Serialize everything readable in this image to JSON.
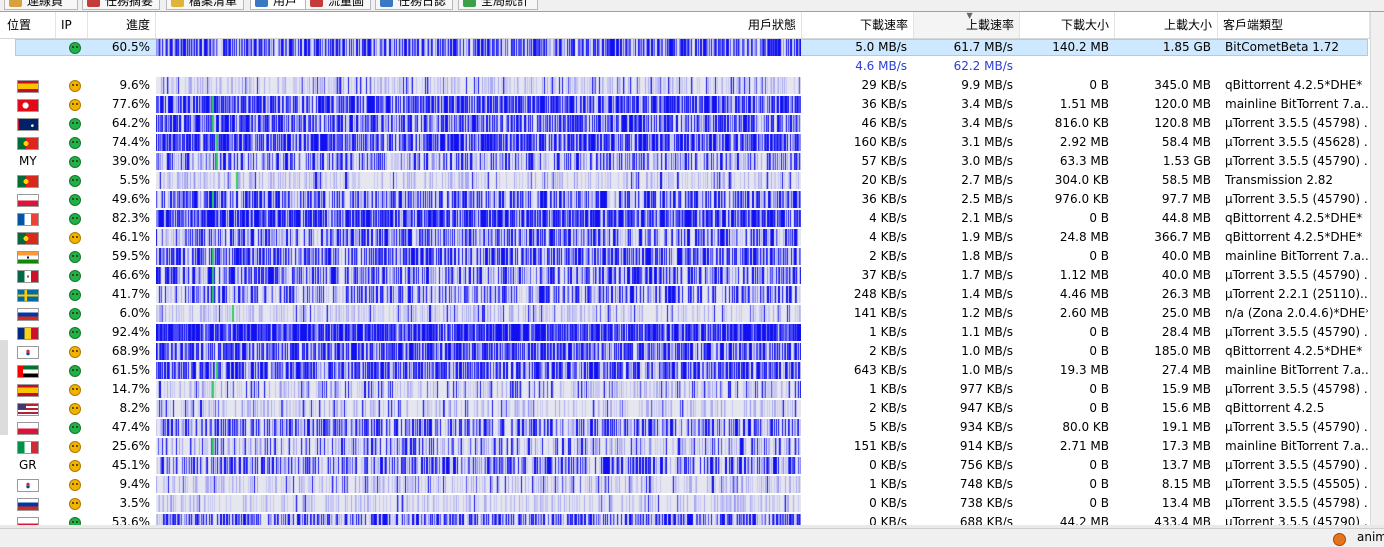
{
  "tabs": [
    {
      "label": "連線員",
      "color": "#d8a23a"
    },
    {
      "label": "任務摘要",
      "color": "#c43b3b"
    },
    {
      "label": "檔案清單",
      "color": "#e0b33a"
    },
    {
      "label": "用戶",
      "color": "#3a78c4",
      "active": true
    },
    {
      "label": "流量圖",
      "color": "#c43b3b"
    },
    {
      "label": "任務日誌",
      "color": "#3a78c4"
    },
    {
      "label": "全局統計",
      "color": "#3aa04a"
    }
  ],
  "columns": {
    "location": "位置",
    "ip": "IP",
    "progress": "進度",
    "status": "用戶狀態",
    "down_rate": "下載速率",
    "up_rate": "上載速率",
    "downloaded": "下載大小",
    "uploaded": "上載大小",
    "client": "客戶端類型"
  },
  "colors": {
    "bar_blue": "#1010f0",
    "bar_light": "#e6e6ee",
    "totals": "#2b3fd6",
    "selection": "#cde8ff"
  },
  "self_row": {
    "progress": "60.5%",
    "progress_value": 0.605,
    "down_rate": "5.0 MB/s",
    "up_rate": "61.7 MB/s",
    "downloaded": "140.2 MB",
    "uploaded": "1.85 GB",
    "client": "BitCometBeta 1.72",
    "ip_icon": "good"
  },
  "totals": {
    "down_rate": "4.6 MB/s",
    "up_rate": "62.2 MB/s"
  },
  "peers": [
    {
      "flag": "es",
      "progress": "9.6%",
      "pv": 0.096,
      "face": "bad",
      "down": "29 KB/s",
      "up": "9.9 MB/s",
      "dl": "0 B",
      "ul": "345.0 MB",
      "client": "qBittorrent 4.2.5*DHE*"
    },
    {
      "flag": "tr",
      "progress": "77.6%",
      "pv": 0.776,
      "face": "bad",
      "down": "36 KB/s",
      "up": "3.4 MB/s",
      "dl": "1.51 MB",
      "ul": "120.0 MB",
      "client": "mainline BitTorrent 7.a..."
    },
    {
      "flag": "au",
      "progress": "64.2%",
      "pv": 0.642,
      "face": "good",
      "down": "46 KB/s",
      "up": "3.4 MB/s",
      "dl": "816.0 KB",
      "ul": "120.8 MB",
      "client": "µTorrent 3.5.5 (45798) ..."
    },
    {
      "flag": "pt",
      "progress": "74.4%",
      "pv": 0.744,
      "face": "good",
      "down": "160 KB/s",
      "up": "3.1 MB/s",
      "dl": "2.92 MB",
      "ul": "58.4 MB",
      "client": "µTorrent 3.5.5 (45628) ..."
    },
    {
      "flag": "",
      "flag_text": "MY",
      "progress": "39.0%",
      "pv": 0.39,
      "face": "good",
      "down": "57 KB/s",
      "up": "3.0 MB/s",
      "dl": "63.3 MB",
      "ul": "1.53 GB",
      "client": "µTorrent 3.5.5 (45790) ..."
    },
    {
      "flag": "pt",
      "progress": "5.5%",
      "pv": 0.055,
      "face": "good",
      "down": "20 KB/s",
      "up": "2.7 MB/s",
      "dl": "304.0 KB",
      "ul": "58.5 MB",
      "client": "Transmission 2.82"
    },
    {
      "flag": "pl",
      "progress": "49.6%",
      "pv": 0.496,
      "face": "good",
      "down": "36 KB/s",
      "up": "2.5 MB/s",
      "dl": "976.0 KB",
      "ul": "97.7 MB",
      "client": "µTorrent 3.5.5 (45790) ..."
    },
    {
      "flag": "fr",
      "progress": "82.3%",
      "pv": 0.823,
      "face": "good",
      "down": "4 KB/s",
      "up": "2.1 MB/s",
      "dl": "0 B",
      "ul": "44.8 MB",
      "client": "qBittorrent 4.2.5*DHE*"
    },
    {
      "flag": "pt",
      "progress": "46.1%",
      "pv": 0.461,
      "face": "bad",
      "down": "4 KB/s",
      "up": "1.9 MB/s",
      "dl": "24.8 MB",
      "ul": "366.7 MB",
      "client": "qBittorrent 4.2.5*DHE*"
    },
    {
      "flag": "in",
      "progress": "59.5%",
      "pv": 0.595,
      "face": "good",
      "down": "2 KB/s",
      "up": "1.8 MB/s",
      "dl": "0 B",
      "ul": "40.0 MB",
      "client": "mainline BitTorrent 7.a..."
    },
    {
      "flag": "mx",
      "progress": "46.6%",
      "pv": 0.466,
      "face": "good",
      "down": "37 KB/s",
      "up": "1.7 MB/s",
      "dl": "1.12 MB",
      "ul": "40.0 MB",
      "client": "µTorrent 3.5.5 (45790) ..."
    },
    {
      "flag": "se",
      "progress": "41.7%",
      "pv": 0.417,
      "face": "good",
      "down": "248 KB/s",
      "up": "1.4 MB/s",
      "dl": "4.46 MB",
      "ul": "26.3 MB",
      "client": "µTorrent 2.2.1 (25110)..."
    },
    {
      "flag": "ru",
      "progress": "6.0%",
      "pv": 0.06,
      "face": "good",
      "down": "141 KB/s",
      "up": "1.2 MB/s",
      "dl": "2.60 MB",
      "ul": "25.0 MB",
      "client": "n/a (Zona 2.0.4.6)*DHE*"
    },
    {
      "flag": "ro",
      "progress": "92.4%",
      "pv": 0.924,
      "face": "good",
      "down": "1 KB/s",
      "up": "1.1 MB/s",
      "dl": "0 B",
      "ul": "28.4 MB",
      "client": "µTorrent 3.5.5 (45790) ..."
    },
    {
      "flag": "kr",
      "progress": "68.9%",
      "pv": 0.689,
      "face": "bad",
      "down": "2 KB/s",
      "up": "1.0 MB/s",
      "dl": "0 B",
      "ul": "185.0 MB",
      "client": "qBittorrent 4.2.5*DHE*"
    },
    {
      "flag": "ae",
      "progress": "61.5%",
      "pv": 0.615,
      "face": "good",
      "down": "643 KB/s",
      "up": "1.0 MB/s",
      "dl": "19.3 MB",
      "ul": "27.4 MB",
      "client": "mainline BitTorrent 7.a..."
    },
    {
      "flag": "es",
      "progress": "14.7%",
      "pv": 0.147,
      "face": "bad",
      "down": "1 KB/s",
      "up": "977 KB/s",
      "dl": "0 B",
      "ul": "15.9 MB",
      "client": "µTorrent 3.5.5 (45798) ..."
    },
    {
      "flag": "us",
      "progress": "8.2%",
      "pv": 0.082,
      "face": "bad",
      "down": "2 KB/s",
      "up": "947 KB/s",
      "dl": "0 B",
      "ul": "15.6 MB",
      "client": "qBittorrent 4.2.5"
    },
    {
      "flag": "pl",
      "progress": "47.4%",
      "pv": 0.474,
      "face": "good",
      "down": "5 KB/s",
      "up": "934 KB/s",
      "dl": "80.0 KB",
      "ul": "19.1 MB",
      "client": "µTorrent 3.5.5 (45790) ..."
    },
    {
      "flag": "it",
      "progress": "25.6%",
      "pv": 0.256,
      "face": "bad",
      "down": "151 KB/s",
      "up": "914 KB/s",
      "dl": "2.71 MB",
      "ul": "17.3 MB",
      "client": "mainline BitTorrent 7.a..."
    },
    {
      "flag": "",
      "flag_text": "GR",
      "progress": "45.1%",
      "pv": 0.451,
      "face": "bad",
      "down": "0 KB/s",
      "up": "756 KB/s",
      "dl": "0 B",
      "ul": "13.7 MB",
      "client": "µTorrent 3.5.5 (45790) ..."
    },
    {
      "flag": "kr",
      "progress": "9.4%",
      "pv": 0.094,
      "face": "bad",
      "down": "1 KB/s",
      "up": "748 KB/s",
      "dl": "0 B",
      "ul": "8.15 MB",
      "client": "µTorrent 3.5.5 (45505) ..."
    },
    {
      "flag": "ru",
      "progress": "3.5%",
      "pv": 0.035,
      "face": "bad",
      "down": "0 KB/s",
      "up": "738 KB/s",
      "dl": "0 B",
      "ul": "13.4 MB",
      "client": "µTorrent 3.5.5 (45798) ..."
    },
    {
      "flag": "pl",
      "progress": "53.6%",
      "pv": 0.536,
      "face": "good",
      "down": "0 KB/s",
      "up": "688 KB/s",
      "dl": "44.2 MB",
      "ul": "433.4 MB",
      "client": "µTorrent 3.5.5 (45790) ..."
    }
  ],
  "statusbar": {
    "text": "anim",
    "icon": "comet-icon"
  }
}
